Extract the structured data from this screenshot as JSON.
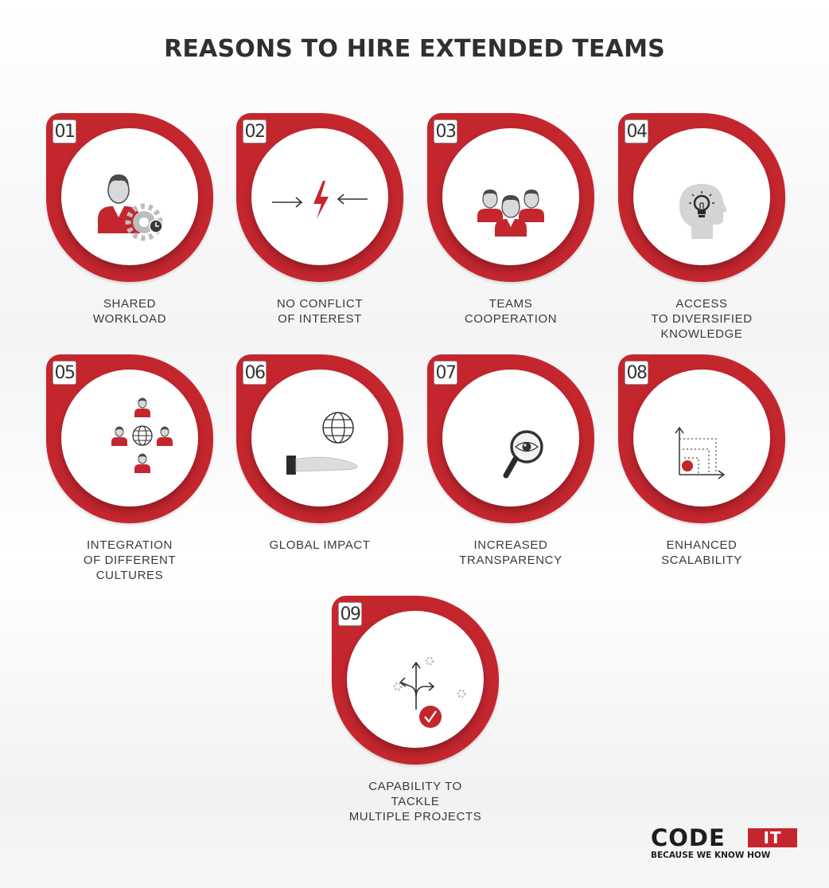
{
  "title": "REASONS TO HIRE EXTENDED TEAMS",
  "colors": {
    "accent": "#c4262e",
    "text": "#2f2f35",
    "icon_gray": "#bdbdbd"
  },
  "items": [
    {
      "number": "01",
      "icon": "user-gear-icon",
      "label_lines": [
        "SHARED",
        "WORKLOAD"
      ]
    },
    {
      "number": "02",
      "icon": "conflict-lightning-icon",
      "label_lines": [
        "NO CONFLICT",
        "OF INTEREST"
      ]
    },
    {
      "number": "03",
      "icon": "team-people-icon",
      "label_lines": [
        "TEAMS",
        "COOPERATION"
      ]
    },
    {
      "number": "04",
      "icon": "head-lightbulb-icon",
      "label_lines": [
        "ACCESS",
        "TO DIVERSIFIED",
        "KNOWLEDGE"
      ]
    },
    {
      "number": "05",
      "icon": "people-globe-icon",
      "label_lines": [
        "INTEGRATION",
        "OF DIFFERENT",
        "CULTURES"
      ]
    },
    {
      "number": "06",
      "icon": "hand-globe-icon",
      "label_lines": [
        "GLOBAL IMPACT"
      ]
    },
    {
      "number": "07",
      "icon": "magnifier-eye-icon",
      "label_lines": [
        "INCREASED",
        "TRANSPARENCY"
      ]
    },
    {
      "number": "08",
      "icon": "scalability-graph-icon",
      "label_lines": [
        "ENHANCED",
        "SCALABILITY"
      ]
    },
    {
      "number": "09",
      "icon": "branching-arrows-check-icon",
      "label_lines": [
        "CAPABILITY TO",
        "TACKLE",
        "MULTIPLE PROJECTS"
      ]
    }
  ],
  "logo": {
    "word": "CODE",
    "highlight": "IT",
    "tagline": "BECAUSE WE KNOW HOW"
  }
}
